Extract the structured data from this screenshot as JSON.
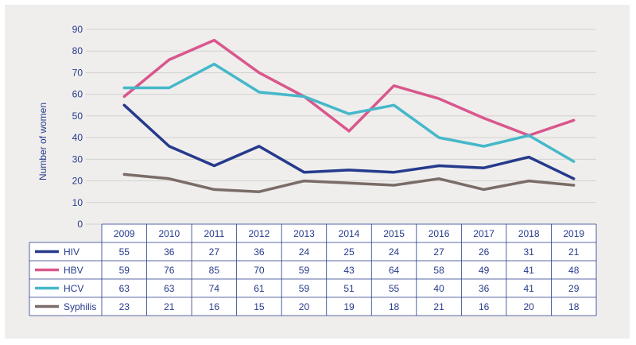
{
  "chart_data": {
    "type": "line",
    "ylabel": "Number of women",
    "ylim": [
      0,
      90
    ],
    "yticks": [
      0,
      10,
      20,
      30,
      40,
      50,
      60,
      70,
      80,
      90
    ],
    "grid": true,
    "x": [
      "2009",
      "2010",
      "2011",
      "2012",
      "2013",
      "2014",
      "2015",
      "2016",
      "2017",
      "2018",
      "2019"
    ],
    "series": [
      {
        "name": "HIV",
        "color": "#263a8c",
        "values": [
          55,
          36,
          27,
          36,
          24,
          25,
          24,
          27,
          26,
          31,
          21
        ]
      },
      {
        "name": "HBV",
        "color": "#d9578c",
        "values": [
          59,
          76,
          85,
          70,
          59,
          43,
          64,
          58,
          49,
          41,
          48
        ]
      },
      {
        "name": "HCV",
        "color": "#45b8c9",
        "values": [
          63,
          63,
          74,
          61,
          59,
          51,
          55,
          40,
          36,
          41,
          29
        ]
      },
      {
        "name": "Syphilis",
        "color": "#7a6c67",
        "values": [
          23,
          21,
          16,
          15,
          20,
          19,
          18,
          21,
          16,
          20,
          18
        ]
      }
    ],
    "data_table": true
  }
}
